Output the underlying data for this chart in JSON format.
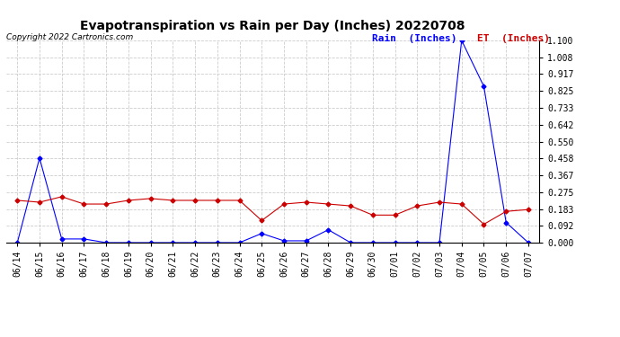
{
  "title": "Evapotranspiration vs Rain per Day (Inches) 20220708",
  "copyright": "Copyright 2022 Cartronics.com",
  "legend_rain": "Rain  (Inches)",
  "legend_et": "ET  (Inches)",
  "x_labels": [
    "06/14",
    "06/15",
    "06/16",
    "06/17",
    "06/18",
    "06/19",
    "06/20",
    "06/21",
    "06/22",
    "06/23",
    "06/24",
    "06/25",
    "06/26",
    "06/27",
    "06/28",
    "06/29",
    "06/30",
    "07/01",
    "07/02",
    "07/03",
    "07/04",
    "07/05",
    "07/06",
    "07/07"
  ],
  "rain_values": [
    0.0,
    0.46,
    0.02,
    0.02,
    0.0,
    0.0,
    0.0,
    0.0,
    0.0,
    0.0,
    0.0,
    0.05,
    0.01,
    0.01,
    0.07,
    0.0,
    0.0,
    0.0,
    0.0,
    0.0,
    1.1,
    0.85,
    0.11,
    0.0
  ],
  "et_values": [
    0.23,
    0.22,
    0.25,
    0.21,
    0.21,
    0.23,
    0.24,
    0.23,
    0.23,
    0.23,
    0.23,
    0.12,
    0.21,
    0.22,
    0.21,
    0.2,
    0.15,
    0.15,
    0.2,
    0.22,
    0.21,
    0.1,
    0.17,
    0.18
  ],
  "rain_color": "#0000ff",
  "et_color": "#cc0000",
  "ylim_min": 0.0,
  "ylim_max": 1.1,
  "yticks": [
    0.0,
    0.092,
    0.183,
    0.275,
    0.367,
    0.458,
    0.55,
    0.642,
    0.733,
    0.825,
    0.917,
    1.008,
    1.1
  ],
  "bg_color": "#ffffff",
  "grid_color": "#cccccc",
  "title_fontsize": 10,
  "copyright_fontsize": 6.5,
  "legend_fontsize": 8,
  "tick_fontsize": 7
}
